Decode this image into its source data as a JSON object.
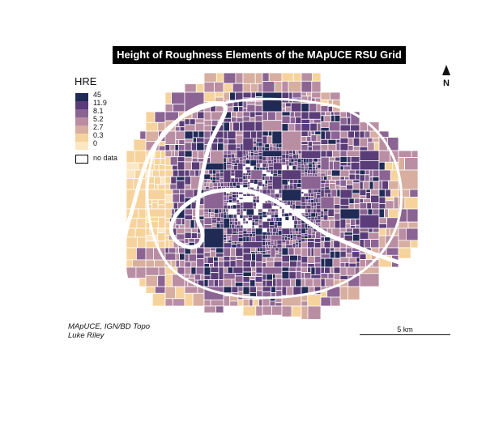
{
  "title": "Height of Roughness Elements of the MApUCE RSU Grid",
  "legend": {
    "title": "HRE",
    "breaks": [
      {
        "label": "45",
        "color": "#1f2a55"
      },
      {
        "label": "11.9",
        "color": "#5a3d78"
      },
      {
        "label": "8.1",
        "color": "#8c6494"
      },
      {
        "label": "5.2",
        "color": "#b98ea3"
      },
      {
        "label": "2.7",
        "color": "#d7ae9f"
      },
      {
        "label": "0.3",
        "color": "#f6d39c"
      },
      {
        "label": "0",
        "color": "#fbe6c2"
      }
    ],
    "no_data": {
      "label": "no data",
      "color": "#ffffff"
    }
  },
  "north": {
    "label": "N",
    "icon": "north-arrow-icon"
  },
  "scale": {
    "label": "5 km"
  },
  "credits": [
    "MApUCE, IGN/BD Topo",
    "Luke Riley"
  ]
}
